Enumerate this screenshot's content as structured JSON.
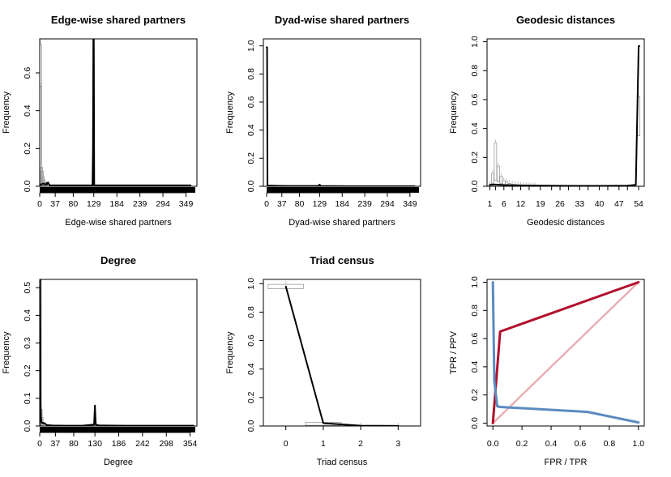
{
  "chart_data": [
    {
      "type": "line",
      "title": "Edge-wise shared partners",
      "xlabel": "Edge-wise shared partners",
      "ylabel": "Frequency",
      "xlim": [
        0,
        375
      ],
      "ylim": [
        0,
        0.78
      ],
      "xticks": [
        0,
        37,
        80,
        129,
        184,
        239,
        294,
        349
      ],
      "yticks": [
        0,
        0.2,
        0.4,
        0.6
      ],
      "rug": true,
      "series": [
        {
          "role": "simulated",
          "style": "gray-box",
          "boxes": [
            [
              1,
              0,
              0.53
            ],
            [
              2,
              0,
              0.75
            ],
            [
              4,
              0,
              0.1
            ],
            [
              6,
              0,
              0.08
            ],
            [
              8,
              0,
              0.05
            ],
            [
              10,
              0,
              0.03
            ],
            [
              13,
              0,
              0.02
            ]
          ]
        },
        {
          "role": "observed",
          "style": "black-line",
          "x": [
            0,
            3,
            6,
            9,
            12,
            15,
            17,
            18,
            20,
            22,
            24,
            126,
            127,
            128,
            129,
            130,
            360
          ],
          "y": [
            0.005,
            0.01,
            0.012,
            0.015,
            0.01,
            0.01,
            0.018,
            0.01,
            0.02,
            0.012,
            0.005,
            0.005,
            0.2,
            0.78,
            0.78,
            0.005,
            0.005
          ]
        }
      ]
    },
    {
      "type": "line",
      "title": "Dyad-wise shared partners",
      "xlabel": "Dyad-wise shared partners",
      "ylabel": "Frequency",
      "xlim": [
        -8,
        375
      ],
      "ylim": [
        0,
        1.05
      ],
      "xticks": [
        0,
        37,
        80,
        129,
        184,
        239,
        294,
        349
      ],
      "yticks": [
        0,
        0.2,
        0.4,
        0.6,
        0.8,
        1.0
      ],
      "rug": true,
      "series": [
        {
          "role": "simulated",
          "style": "gray-box",
          "boxes": []
        },
        {
          "role": "observed",
          "style": "black-line",
          "x": [
            0,
            1,
            2,
            30,
            60,
            100,
            126,
            128,
            129,
            130,
            132,
            200,
            360
          ],
          "y": [
            0.99,
            0.99,
            0.005,
            0.003,
            0.002,
            0.002,
            0.002,
            0.01,
            0.012,
            0.008,
            0.002,
            0.001,
            0.001
          ]
        }
      ]
    },
    {
      "type": "line",
      "title": "Geodesic distances",
      "xlabel": "Geodesic distances",
      "ylabel": "Frequency",
      "xlim": [
        0,
        56
      ],
      "ylim": [
        0,
        1.02
      ],
      "xticks": [
        1,
        3,
        6,
        9,
        12,
        15,
        19,
        23,
        26,
        29,
        33,
        36,
        40,
        43,
        47,
        50,
        54
      ],
      "xticklabels": [
        "1",
        "",
        "6",
        "",
        "12",
        "",
        "19",
        "",
        "26",
        "",
        "33",
        "",
        "40",
        "",
        "47",
        "",
        "54"
      ],
      "yticks": [
        0,
        0.2,
        0.4,
        0.6,
        0.8,
        1.0
      ],
      "rug": false,
      "series": [
        {
          "role": "simulated",
          "style": "gray-box",
          "boxes": [
            [
              1,
              0,
              0.01
            ],
            [
              2,
              0.02,
              0.09
            ],
            [
              3,
              0.04,
              0.3
            ],
            [
              4,
              0.03,
              0.14
            ],
            [
              5,
              0.02,
              0.07
            ],
            [
              6,
              0.01,
              0.04
            ],
            [
              7,
              0.005,
              0.03
            ],
            [
              8,
              0.003,
              0.02
            ],
            [
              9,
              0.002,
              0.015
            ],
            [
              10,
              0.001,
              0.012
            ],
            [
              11,
              0.001,
              0.01
            ],
            [
              12,
              0,
              0.008
            ],
            [
              13,
              0,
              0.006
            ],
            [
              14,
              0,
              0.005
            ],
            [
              15,
              0,
              0.004
            ],
            [
              16,
              0,
              0.003
            ],
            [
              17,
              0,
              0.002
            ],
            [
              54,
              0.35,
              0.62
            ]
          ]
        },
        {
          "role": "observed",
          "style": "black-line",
          "x": [
            1,
            2,
            3,
            4,
            5,
            6,
            8,
            10,
            15,
            20,
            30,
            40,
            50,
            53,
            54,
            54.3
          ],
          "y": [
            0.01,
            0.012,
            0.012,
            0.011,
            0.01,
            0.009,
            0.008,
            0.007,
            0.005,
            0.004,
            0.003,
            0.003,
            0.004,
            0.01,
            0.97,
            0.97
          ]
        }
      ]
    },
    {
      "type": "line",
      "title": "Degree",
      "xlabel": "Degree",
      "ylabel": "Frequency",
      "xlim": [
        0,
        370
      ],
      "ylim": [
        0,
        0.53
      ],
      "xticks": [
        0,
        37,
        80,
        130,
        186,
        242,
        298,
        354
      ],
      "yticks": [
        0,
        0.1,
        0.2,
        0.3,
        0.4,
        0.5
      ],
      "rug": true,
      "series": [
        {
          "role": "simulated",
          "style": "gray-box",
          "boxes": [
            [
              1,
              0,
              0.53
            ],
            [
              3,
              0,
              0.06
            ],
            [
              5,
              0,
              0.03
            ]
          ]
        },
        {
          "role": "observed",
          "style": "black-line",
          "x": [
            0,
            1,
            2,
            3,
            4,
            6,
            8,
            10,
            12,
            14,
            16,
            20,
            30,
            60,
            100,
            128,
            129,
            130,
            131,
            132,
            140,
            200,
            362
          ],
          "y": [
            0.002,
            0.53,
            0.08,
            0.03,
            0.015,
            0.01,
            0.012,
            0.008,
            0.01,
            0.006,
            0.004,
            0.003,
            0.002,
            0.001,
            0.001,
            0.005,
            0.04,
            0.074,
            0.035,
            0.005,
            0.002,
            0.001,
            0.001
          ]
        }
      ]
    },
    {
      "type": "line",
      "title": "Triad census",
      "xlabel": "Triad census",
      "ylabel": "Frequency",
      "xlim": [
        -0.6,
        3.6
      ],
      "ylim": [
        0,
        1.03
      ],
      "xticks": [
        0,
        1,
        2,
        3
      ],
      "yticks": [
        0,
        0.2,
        0.4,
        0.6,
        0.8,
        1.0
      ],
      "rug": false,
      "series": [
        {
          "role": "simulated",
          "style": "gray-box-wide",
          "boxes": [
            [
              0,
              0.965,
              0.995
            ],
            [
              1,
              0.005,
              0.025
            ],
            [
              2,
              0.0005,
              0.002
            ],
            [
              3,
              0,
              0.001
            ]
          ]
        },
        {
          "role": "observed",
          "style": "black-line",
          "x": [
            0,
            1,
            2,
            3
          ],
          "y": [
            0.98,
            0.02,
            0.002,
            0.0005
          ]
        }
      ]
    },
    {
      "type": "line",
      "title": "",
      "xlabel": "FPR / TPR",
      "ylabel": "TPR / PPV",
      "xlim": [
        -0.04,
        1.04
      ],
      "ylim": [
        -0.02,
        1.02
      ],
      "xticks": [
        0,
        0.2,
        0.4,
        0.6,
        0.8,
        1.0
      ],
      "yticks": [
        0,
        0.2,
        0.4,
        0.6,
        0.8,
        1.0
      ],
      "rug": false,
      "series": [
        {
          "role": "diagonal",
          "color": "#E8B0B4",
          "x": [
            0,
            1
          ],
          "y": [
            0,
            1
          ]
        },
        {
          "role": "roc",
          "color": "#B2102C",
          "x": [
            0,
            0.05,
            1
          ],
          "y": [
            0,
            0.65,
            1
          ]
        },
        {
          "role": "pr",
          "color": "#5B8BC0",
          "x": [
            0,
            0.01,
            0.03,
            0.05,
            0.65,
            1
          ],
          "y": [
            1,
            0.3,
            0.12,
            0.115,
            0.08,
            0.005
          ]
        }
      ]
    }
  ]
}
